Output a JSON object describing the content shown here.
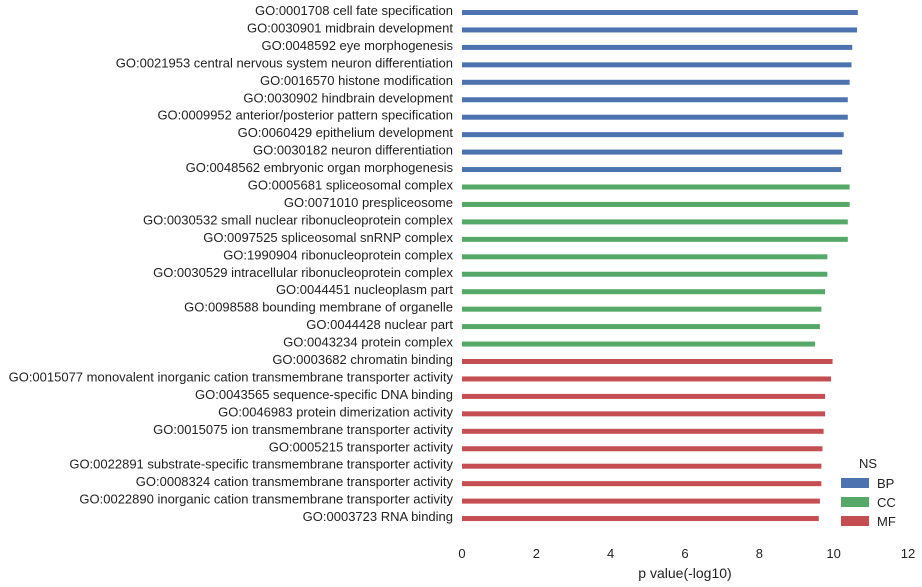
{
  "chart_data": {
    "type": "bar",
    "orientation": "horizontal",
    "xlabel": "p value(-log10)",
    "ylabel": "",
    "xlim": [
      0,
      12
    ],
    "xticks": [
      0,
      2,
      4,
      6,
      8,
      10,
      12
    ],
    "grid": false,
    "legend": {
      "title": "NS",
      "placement": "bottom-right",
      "entries": [
        {
          "name": "BP",
          "color": "#4c72b0"
        },
        {
          "name": "CC",
          "color": "#55a868"
        },
        {
          "name": "MF",
          "color": "#c44e52"
        }
      ]
    },
    "categories": [
      "GO:0001708 cell fate specification",
      "GO:0030901 midbrain development",
      "GO:0048592 eye morphogenesis",
      "GO:0021953 central nervous system neuron differentiation",
      "GO:0016570 histone modification",
      "GO:0030902 hindbrain development",
      "GO:0009952 anterior/posterior pattern specification",
      "GO:0060429 epithelium development",
      "GO:0030182 neuron differentiation",
      "GO:0048562 embryonic organ morphogenesis",
      "GO:0005681 spliceosomal complex",
      "GO:0071010 prespliceosome",
      "GO:0030532 small nuclear ribonucleoprotein complex",
      "GO:0097525 spliceosomal snRNP complex",
      "GO:1990904 ribonucleoprotein complex",
      "GO:0030529 intracellular ribonucleoprotein complex",
      "GO:0044451 nucleoplasm part",
      "GO:0098588 bounding membrane of organelle",
      "GO:0044428 nuclear part",
      "GO:0043234 protein complex",
      "GO:0003682 chromatin binding",
      "GO:0015077 monovalent inorganic cation transmembrane transporter activity",
      "GO:0043565 sequence-specific DNA binding",
      "GO:0046983 protein dimerization activity",
      "GO:0015075 ion transmembrane transporter activity",
      "GO:0005215 transporter activity",
      "GO:0022891 substrate-specific transmembrane transporter activity",
      "GO:0008324 cation transmembrane transporter activity",
      "GO:0022890 inorganic cation transmembrane transporter activity",
      "GO:0003723 RNA binding"
    ],
    "groups": [
      "BP",
      "BP",
      "BP",
      "BP",
      "BP",
      "BP",
      "BP",
      "BP",
      "BP",
      "BP",
      "CC",
      "CC",
      "CC",
      "CC",
      "CC",
      "CC",
      "CC",
      "CC",
      "CC",
      "CC",
      "MF",
      "MF",
      "MF",
      "MF",
      "MF",
      "MF",
      "MF",
      "MF",
      "MF",
      "MF"
    ],
    "values": [
      10.65,
      10.63,
      10.5,
      10.48,
      10.43,
      10.38,
      10.38,
      10.27,
      10.23,
      10.2,
      10.43,
      10.43,
      10.38,
      10.38,
      9.83,
      9.83,
      9.77,
      9.67,
      9.63,
      9.5,
      9.97,
      9.93,
      9.77,
      9.77,
      9.73,
      9.7,
      9.67,
      9.67,
      9.63,
      9.6
    ]
  }
}
